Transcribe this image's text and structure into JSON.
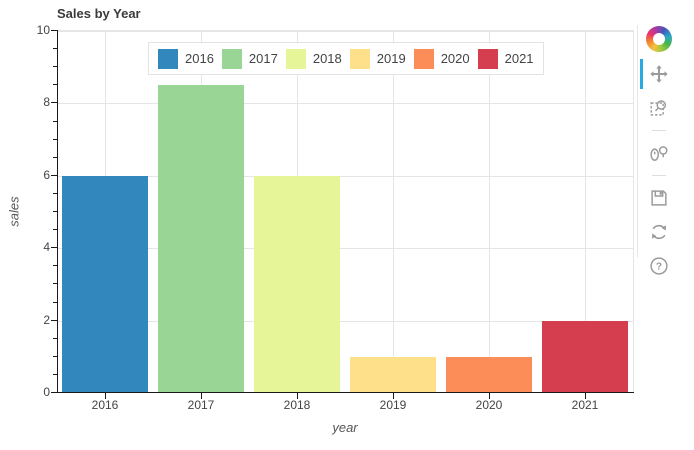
{
  "figure": {
    "title": "Sales by Year"
  },
  "chart_data": {
    "type": "bar",
    "title": "Sales by Year",
    "categories": [
      "2016",
      "2017",
      "2018",
      "2019",
      "2020",
      "2021"
    ],
    "values": [
      6,
      8.5,
      6,
      1,
      1,
      2
    ],
    "bar_colors": [
      "#3288bd",
      "#99d594",
      "#e6f598",
      "#fee08b",
      "#fc8d59",
      "#d53e4f"
    ],
    "xlabel": "year",
    "ylabel": "sales",
    "ylim": [
      0,
      10
    ],
    "yticks": [
      0,
      2,
      4,
      6,
      8,
      10
    ],
    "minor_tick_step": 0.5,
    "grid": true,
    "legend_position": "top-center",
    "legend_entries": [
      "2016",
      "2017",
      "2018",
      "2019",
      "2020",
      "2021"
    ]
  },
  "axes": {
    "x": {
      "label": "year",
      "tick_labels": [
        "2016",
        "2017",
        "2018",
        "2019",
        "2020",
        "2021"
      ]
    },
    "y": {
      "label": "sales",
      "tick_labels": [
        "0",
        "2",
        "4",
        "6",
        "8",
        "10"
      ]
    }
  },
  "legend": {
    "items": [
      {
        "label": "2016",
        "color": "#3288bd"
      },
      {
        "label": "2017",
        "color": "#99d594"
      },
      {
        "label": "2018",
        "color": "#e6f598"
      },
      {
        "label": "2019",
        "color": "#fee08b"
      },
      {
        "label": "2020",
        "color": "#fc8d59"
      },
      {
        "label": "2021",
        "color": "#d53e4f"
      }
    ]
  },
  "toolbar": {
    "logo_icon": "bokeh-logo-icon",
    "active_tool": "pan",
    "active_indicator_color": "#26aae1",
    "icon_color": "#9a9a9a",
    "tools": [
      {
        "name": "pan",
        "icon": "pan-icon",
        "active": true
      },
      {
        "name": "box-zoom",
        "icon": "box-zoom-icon",
        "active": false
      },
      {
        "separator": true
      },
      {
        "name": "wheel-zoom",
        "icon": "wheel-zoom-icon",
        "active": false
      },
      {
        "separator": true
      },
      {
        "name": "save",
        "icon": "save-icon",
        "active": false
      },
      {
        "name": "reset",
        "icon": "reset-icon",
        "active": false
      },
      {
        "name": "help",
        "icon": "help-icon",
        "active": false
      }
    ]
  },
  "colors": {
    "grid": "#e5e5e5",
    "axis_line": "#1a1a1a",
    "tick_label": "#444444",
    "title": "#3b3b3b"
  }
}
